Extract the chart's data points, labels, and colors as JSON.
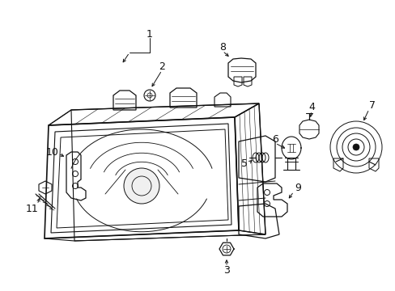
{
  "background_color": "#ffffff",
  "line_color": "#111111",
  "lw": 0.9,
  "fig_width": 4.89,
  "fig_height": 3.6,
  "dpi": 100,
  "xlim": [
    0,
    489
  ],
  "ylim": [
    0,
    360
  ]
}
